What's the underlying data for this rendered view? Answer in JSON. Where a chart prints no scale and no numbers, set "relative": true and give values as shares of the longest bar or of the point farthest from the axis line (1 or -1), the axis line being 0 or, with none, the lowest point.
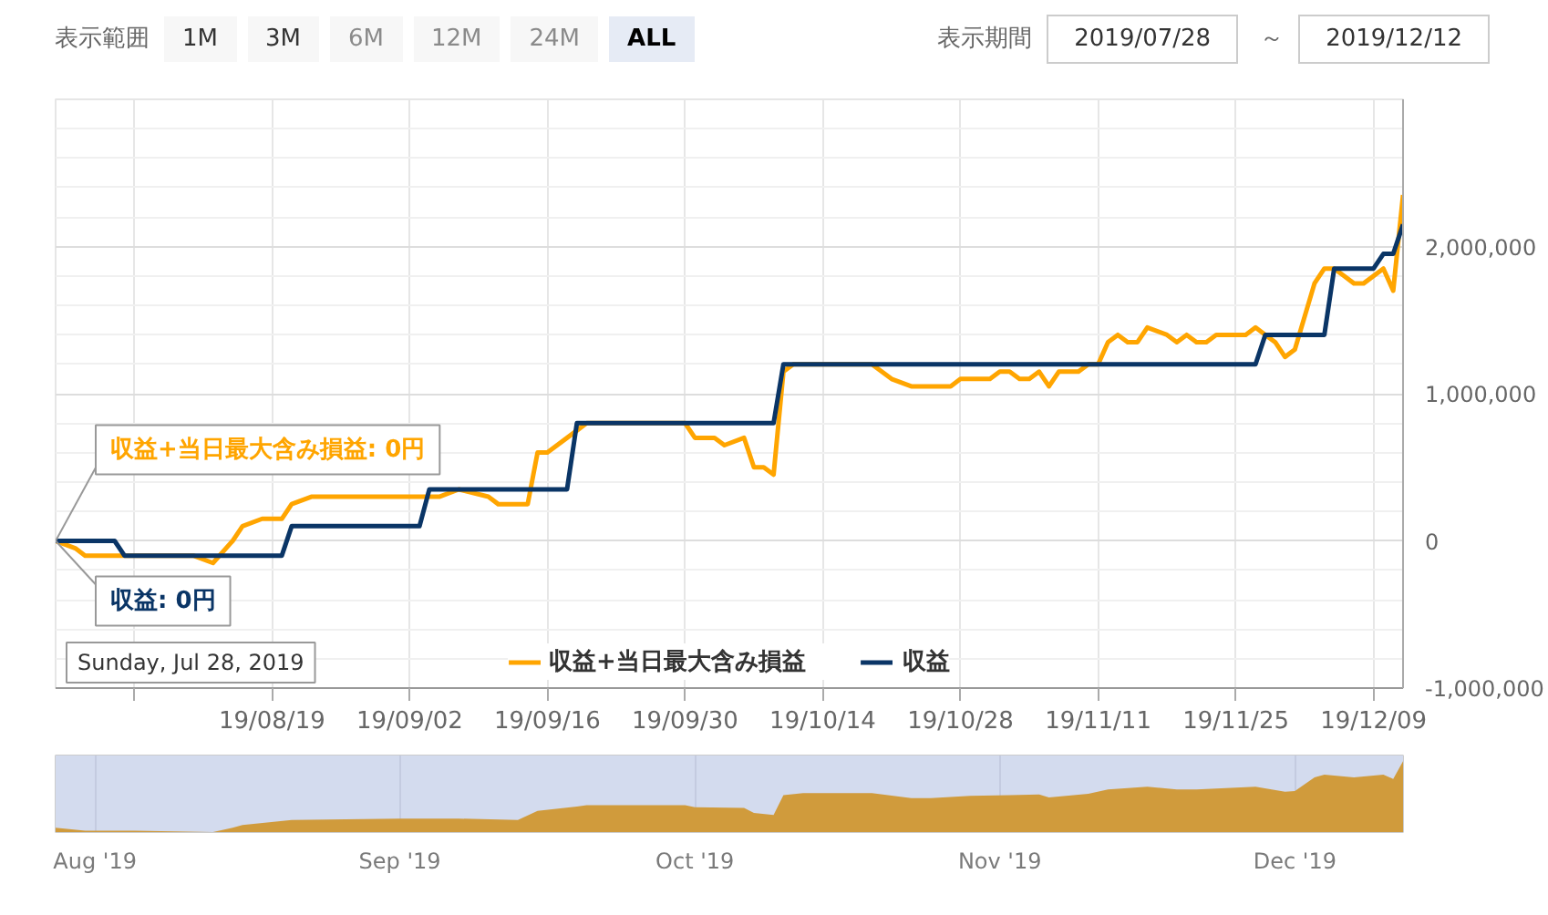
{
  "chart_data": [
    {
      "type": "line",
      "annotations": [
        "表示範囲",
        "1M",
        "3M",
        "6M",
        "12M",
        "24M",
        "ALL",
        "表示期間",
        "2019/07/28",
        "～",
        "2019/12/12",
        {
          "text": "収益+当日最大含み損益: 0円",
          "x": "2019-07-28",
          "y": 0
        },
        {
          "text": "収益: 0円",
          "x": "2019-07-28",
          "y": 0
        },
        "Sunday, Jul 28, 2019"
      ],
      "series": [
        {
          "name": "収益+当日最大含み損益",
          "color": "#ffa500",
          "x": [
            "2019-07-28",
            "2019-07-30",
            "2019-07-31",
            "2019-08-05",
            "2019-08-11",
            "2019-08-13",
            "2019-08-15",
            "2019-08-16",
            "2019-08-18",
            "2019-08-20",
            "2019-08-21",
            "2019-08-23",
            "2019-08-27",
            "2019-09-01",
            "2019-09-05",
            "2019-09-07",
            "2019-09-10",
            "2019-09-11",
            "2019-09-13",
            "2019-09-14",
            "2019-09-15",
            "2019-09-16",
            "2019-09-19",
            "2019-09-20",
            "2019-09-30",
            "2019-10-01",
            "2019-10-03",
            "2019-10-04",
            "2019-10-06",
            "2019-10-07",
            "2019-10-08",
            "2019-10-09",
            "2019-10-10",
            "2019-10-11",
            "2019-10-12",
            "2019-10-19",
            "2019-10-21",
            "2019-10-23",
            "2019-10-25",
            "2019-10-27",
            "2019-10-28",
            "2019-10-29",
            "2019-10-31",
            "2019-11-01",
            "2019-11-02",
            "2019-11-03",
            "2019-11-04",
            "2019-11-05",
            "2019-11-06",
            "2019-11-07",
            "2019-11-09",
            "2019-11-10",
            "2019-11-11",
            "2019-11-12",
            "2019-11-13",
            "2019-11-14",
            "2019-11-15",
            "2019-11-16",
            "2019-11-18",
            "2019-11-19",
            "2019-11-20",
            "2019-11-21",
            "2019-11-22",
            "2019-11-23",
            "2019-11-25",
            "2019-11-26",
            "2019-11-27",
            "2019-11-28",
            "2019-11-29",
            "2019-11-30",
            "2019-12-01",
            "2019-12-03",
            "2019-12-04",
            "2019-12-05",
            "2019-12-06",
            "2019-12-07",
            "2019-12-08",
            "2019-12-10",
            "2019-12-11",
            "2019-12-12"
          ],
          "values": [
            0,
            -50000,
            -100000,
            -100000,
            -100000,
            -150000,
            0,
            100000,
            150000,
            150000,
            250000,
            300000,
            300000,
            300000,
            300000,
            350000,
            300000,
            250000,
            250000,
            250000,
            600000,
            600000,
            750000,
            800000,
            800000,
            700000,
            700000,
            650000,
            700000,
            500000,
            500000,
            450000,
            1150000,
            1200000,
            1200000,
            1200000,
            1100000,
            1050000,
            1050000,
            1050000,
            1100000,
            1100000,
            1100000,
            1150000,
            1150000,
            1100000,
            1100000,
            1150000,
            1050000,
            1150000,
            1150000,
            1200000,
            1200000,
            1350000,
            1400000,
            1350000,
            1350000,
            1450000,
            1400000,
            1350000,
            1400000,
            1350000,
            1350000,
            1400000,
            1400000,
            1400000,
            1450000,
            1400000,
            1350000,
            1250000,
            1300000,
            1750000,
            1850000,
            1850000,
            1800000,
            1750000,
            1750000,
            1850000,
            1700000,
            2350000
          ]
        },
        {
          "name": "収益",
          "color": "#0a3566",
          "x": [
            "2019-07-28",
            "2019-08-03",
            "2019-08-04",
            "2019-08-20",
            "2019-08-21",
            "2019-09-03",
            "2019-09-04",
            "2019-09-18",
            "2019-09-19",
            "2019-10-09",
            "2019-10-10",
            "2019-11-27",
            "2019-11-28",
            "2019-12-04",
            "2019-12-05",
            "2019-12-09",
            "2019-12-10",
            "2019-12-11",
            "2019-12-12"
          ],
          "values": [
            0,
            0,
            -100000,
            -100000,
            100000,
            100000,
            350000,
            350000,
            800000,
            800000,
            1200000,
            1200000,
            1400000,
            1400000,
            1850000,
            1850000,
            1950000,
            1950000,
            2150000
          ]
        }
      ],
      "xlim": [
        "2019-07-28",
        "2019-12-12"
      ],
      "xticks": [
        {
          "value": "2019-08-05",
          "label": null
        },
        {
          "value": "2019-08-19",
          "label": "19/08/19"
        },
        {
          "value": "2019-09-02",
          "label": "19/09/02"
        },
        {
          "value": "2019-09-16",
          "label": "19/09/16"
        },
        {
          "value": "2019-09-30",
          "label": "19/09/30"
        },
        {
          "value": "2019-10-14",
          "label": "19/10/14"
        },
        {
          "value": "2019-10-28",
          "label": "19/10/28"
        },
        {
          "value": "2019-11-11",
          "label": "19/11/11"
        },
        {
          "value": "2019-11-25",
          "label": "19/11/25"
        },
        {
          "value": "2019-12-09",
          "label": "19/12/09"
        }
      ],
      "ylim": [
        -1000000,
        3000000
      ],
      "yticks": [
        {
          "value": -1000000,
          "label": "-1,000,000"
        },
        {
          "value": -800000,
          "label": null
        },
        {
          "value": -600000,
          "label": null
        },
        {
          "value": -400000,
          "label": null
        },
        {
          "value": -200000,
          "label": null
        },
        0,
        {
          "value": 200000,
          "label": null
        },
        {
          "value": 400000,
          "label": null
        },
        {
          "value": 600000,
          "label": null
        },
        {
          "value": 800000,
          "label": null
        },
        {
          "value": 1000000,
          "label": "1,000,000"
        },
        {
          "value": 1200000,
          "label": null
        },
        {
          "value": 1400000,
          "label": null
        },
        {
          "value": 1600000,
          "label": null
        },
        {
          "value": 1800000,
          "label": null
        },
        {
          "value": 2000000,
          "label": "2,000,000"
        },
        {
          "value": 2200000,
          "label": null
        },
        {
          "value": 2400000,
          "label": null
        },
        {
          "value": 2600000,
          "label": null
        },
        {
          "value": 2800000,
          "label": null
        },
        {
          "value": 3000000,
          "label": null
        }
      ],
      "grid": true,
      "legend": "bottom"
    },
    {
      "type": "area",
      "relative": true,
      "series": [
        {
          "color": "#d09b3c",
          "x": [
            "2019-07-28",
            "2019-07-31",
            "2019-08-05",
            "2019-08-13",
            "2019-08-15",
            "2019-08-16",
            "2019-08-21",
            "2019-09-01",
            "2019-09-07",
            "2019-09-13",
            "2019-09-15",
            "2019-09-19",
            "2019-09-20",
            "2019-09-30",
            "2019-10-01",
            "2019-10-06",
            "2019-10-07",
            "2019-10-09",
            "2019-10-10",
            "2019-10-12",
            "2019-10-19",
            "2019-10-23",
            "2019-10-25",
            "2019-10-29",
            "2019-11-02",
            "2019-11-05",
            "2019-11-06",
            "2019-11-10",
            "2019-11-12",
            "2019-11-16",
            "2019-11-19",
            "2019-11-21",
            "2019-11-27",
            "2019-11-30",
            "2019-12-01",
            "2019-12-03",
            "2019-12-04",
            "2019-12-07",
            "2019-12-10",
            "2019-12-11",
            "2019-12-12"
          ],
          "values": [
            0.06,
            0.02,
            0.02,
            0,
            0.06,
            0.1,
            0.17,
            0.19,
            0.19,
            0.17,
            0.3,
            0.36,
            0.38,
            0.38,
            0.35,
            0.34,
            0.27,
            0.24,
            0.52,
            0.55,
            0.55,
            0.48,
            0.48,
            0.51,
            0.52,
            0.53,
            0.49,
            0.54,
            0.6,
            0.64,
            0.6,
            0.6,
            0.64,
            0.57,
            0.58,
            0.77,
            0.81,
            0.77,
            0.81,
            0.75,
            1
          ]
        }
      ],
      "xlim": [
        "2019-07-28",
        "2019-12-12"
      ],
      "xticks": [
        {
          "value": "2019-08-01",
          "label": "Aug '19"
        },
        {
          "value": "2019-09-01",
          "label": "Sep '19"
        },
        {
          "value": "2019-10-01",
          "label": "Oct '19"
        },
        {
          "value": "2019-11-01",
          "label": "Nov '19"
        },
        {
          "value": "2019-12-01",
          "label": "Dec '19"
        }
      ],
      "tick_labels": "x",
      "grid": "x",
      "bands": [
        {
          "axis": "x",
          "from": "2019-07-28",
          "to": "2019-12-12",
          "color": "#d3dbee"
        }
      ]
    }
  ]
}
